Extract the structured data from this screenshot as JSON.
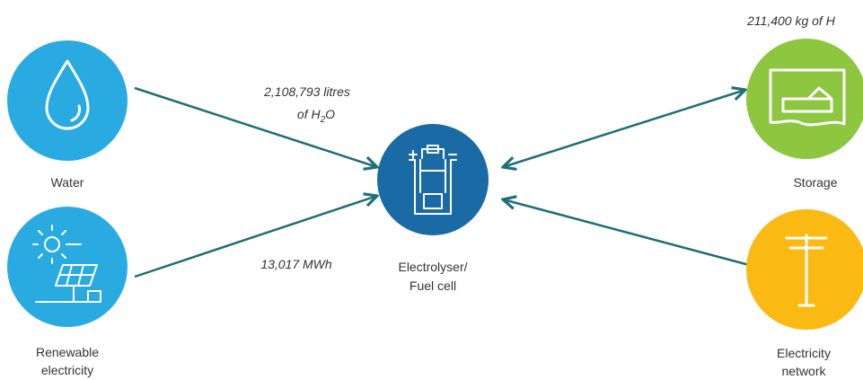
{
  "nodes": [
    {
      "label": [
        "Water"
      ]
    },
    {
      "label": [
        "Renewable",
        "electricity"
      ]
    },
    {
      "label": [
        "Electrolyser/",
        "Fuel cell"
      ]
    },
    {
      "label": [
        "Storage"
      ]
    },
    {
      "label": [
        "Electricity",
        "network"
      ]
    }
  ],
  "flows": [
    {
      "label": [
        "2,108,793 litres"
      ],
      "label_line2": [
        "of H",
        "2",
        "O"
      ]
    },
    {
      "label": [
        "13,017 MWh"
      ]
    },
    {
      "label": [
        "211,400 kg of H"
      ]
    }
  ]
}
